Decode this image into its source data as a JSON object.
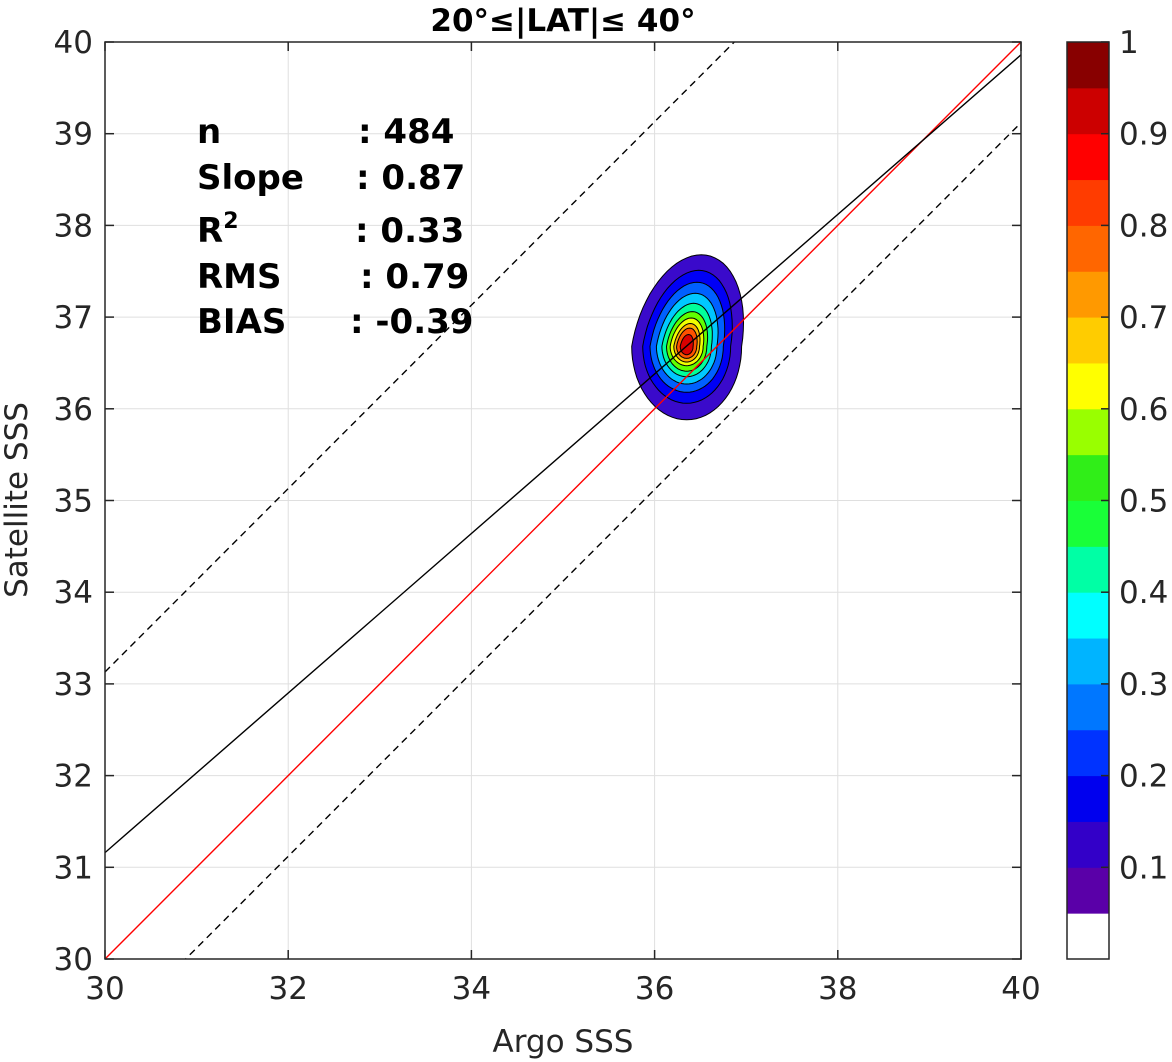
{
  "chart_data": {
    "type": "contour",
    "title": "20°≤|LAT|≤ 40°",
    "xlabel": "Argo SSS",
    "ylabel": "Satellite SSS",
    "xlim": [
      30,
      40
    ],
    "ylim": [
      30,
      40
    ],
    "x_ticks": [
      30,
      32,
      34,
      36,
      38,
      40
    ],
    "y_ticks": [
      30,
      31,
      32,
      33,
      34,
      35,
      36,
      37,
      38,
      39,
      40
    ],
    "grid": true,
    "stats": [
      {
        "label": "n",
        "value": ": 484"
      },
      {
        "label": "Slope",
        "value": ": 0.87"
      },
      {
        "label": "R",
        "sup": "2",
        "value": ": 0.33"
      },
      {
        "label": "RMS",
        "value": ": 0.79"
      },
      {
        "label": "BIAS",
        "value": ": -0.39"
      }
    ],
    "lines": [
      {
        "name": "one-to-one",
        "color": "#ff0000",
        "slope": 1.0,
        "intercept": 0.0
      },
      {
        "name": "regression",
        "color": "#000000",
        "slope": 0.87,
        "intercept": 5.06
      },
      {
        "name": "upper-bound",
        "color": "#000000",
        "dash": true,
        "slope": 1.0,
        "intercept": 3.13
      },
      {
        "name": "lower-bound",
        "color": "#000000",
        "dash": true,
        "slope": 1.0,
        "intercept": -0.88
      }
    ],
    "density": {
      "center": [
        36.35,
        36.68
      ],
      "levels": [
        {
          "level": 0.05,
          "color": "#3a0acb",
          "rx": 0.6,
          "ry_up": 1.0,
          "ry_down": 0.8
        },
        {
          "level": 0.1,
          "color": "#0000f5",
          "rx": 0.48,
          "ry_up": 0.83,
          "ry_down": 0.62
        },
        {
          "level": 0.2,
          "color": "#0060ff",
          "rx": 0.4,
          "ry_up": 0.7,
          "ry_down": 0.5
        },
        {
          "level": 0.3,
          "color": "#00c8ff",
          "rx": 0.33,
          "ry_up": 0.58,
          "ry_down": 0.41
        },
        {
          "level": 0.4,
          "color": "#00ff9a",
          "rx": 0.27,
          "ry_up": 0.47,
          "ry_down": 0.33
        },
        {
          "level": 0.5,
          "color": "#60ff00",
          "rx": 0.22,
          "ry_up": 0.38,
          "ry_down": 0.27
        },
        {
          "level": 0.6,
          "color": "#f0ff00",
          "rx": 0.18,
          "ry_up": 0.31,
          "ry_down": 0.21
        },
        {
          "level": 0.7,
          "color": "#ffb000",
          "rx": 0.14,
          "ry_up": 0.25,
          "ry_down": 0.17
        },
        {
          "level": 0.8,
          "color": "#ff5000",
          "rx": 0.11,
          "ry_up": 0.2,
          "ry_down": 0.13
        },
        {
          "level": 0.9,
          "color": "#d80000",
          "rx": 0.07,
          "ry_up": 0.13,
          "ry_down": 0.09
        }
      ]
    },
    "colorbar": {
      "tick_labels": [
        "0.1",
        "0.2",
        "0.3",
        "0.4",
        "0.5",
        "0.6",
        "0.7",
        "0.8",
        "0.9",
        "1"
      ],
      "tick_values": [
        0.1,
        0.2,
        0.3,
        0.4,
        0.5,
        0.6,
        0.7,
        0.8,
        0.9,
        1.0
      ],
      "colors": [
        "#ffffff",
        "#5a00a8",
        "#3300c8",
        "#0000ee",
        "#0033ff",
        "#0077ff",
        "#00b4ff",
        "#00ffff",
        "#00ffa5",
        "#19ff38",
        "#30ee18",
        "#99ff00",
        "#ffff00",
        "#ffcc00",
        "#ff9900",
        "#ff6600",
        "#ff3c00",
        "#ff0000",
        "#cc0000",
        "#880000"
      ]
    }
  }
}
